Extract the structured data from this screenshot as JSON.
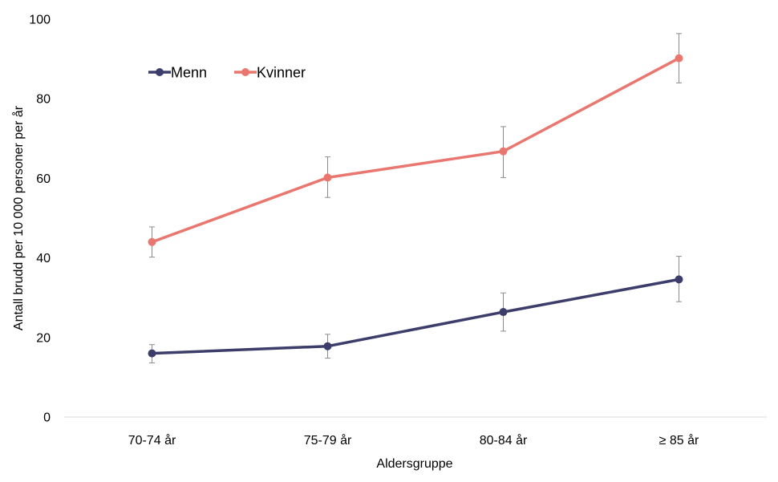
{
  "chart_data": {
    "type": "line",
    "title": "",
    "xlabel": "Aldersgruppe",
    "ylabel": "Antall brudd per 10 000 personer per år",
    "categories": [
      "70-74 år",
      "75-79 år",
      "80-84 år",
      "≥ 85 år"
    ],
    "ylim": [
      0,
      100
    ],
    "yticks": [
      0,
      20,
      40,
      60,
      80,
      100
    ],
    "grid": false,
    "legend_position": "top-left",
    "series": [
      {
        "name": "Menn",
        "color": "#3d3d6b",
        "values": [
          16.0,
          17.8,
          26.4,
          34.6
        ],
        "error_low": [
          13.6,
          14.8,
          21.6,
          29.0
        ],
        "error_high": [
          18.2,
          20.8,
          31.2,
          40.4
        ]
      },
      {
        "name": "Kvinner",
        "color": "#e9776f",
        "values": [
          44.0,
          60.2,
          66.8,
          90.2
        ],
        "error_low": [
          40.2,
          55.2,
          60.2,
          84.0
        ],
        "error_high": [
          47.8,
          65.4,
          73.0,
          96.4
        ]
      }
    ],
    "errorbar_color": "#8c8c8c",
    "axis_color": "#d9d9d9"
  }
}
